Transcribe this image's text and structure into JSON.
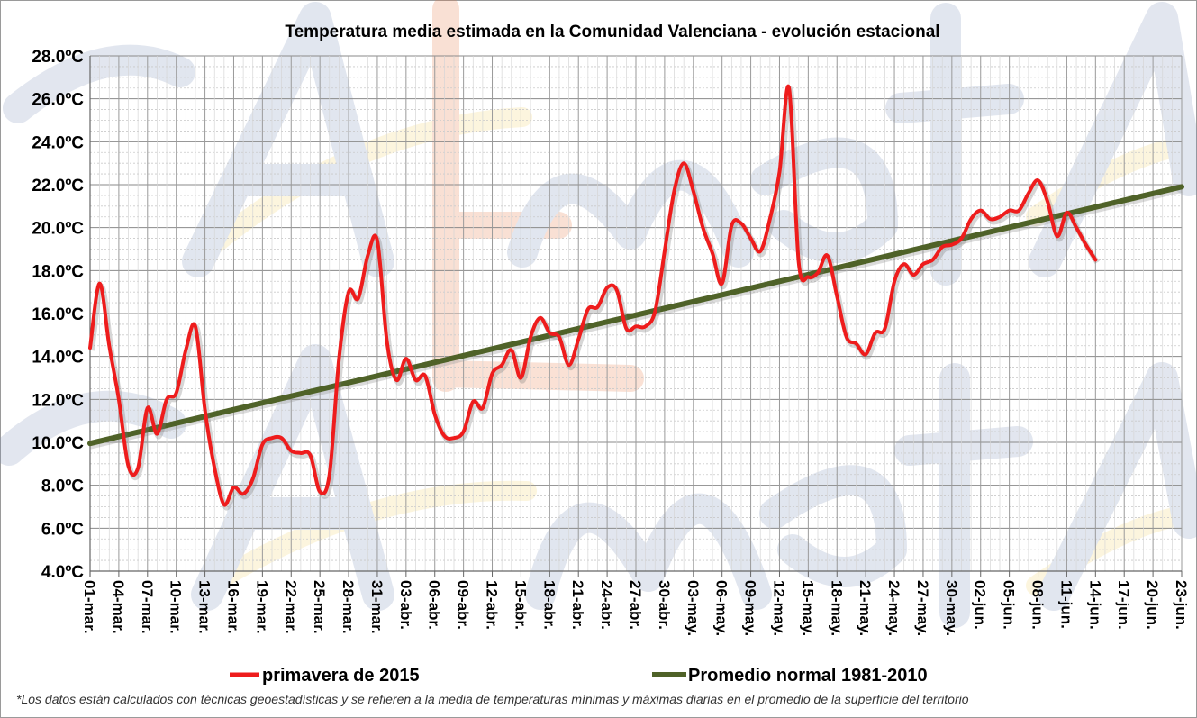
{
  "chart_data": {
    "type": "line",
    "title": "Temperatura media estimada en la Comunidad Valenciana - evolución estacional",
    "xlabel": "",
    "ylabel": "",
    "ylim": [
      4,
      28
    ],
    "y_ticks": [
      "4.0ºC",
      "6.0ºC",
      "8.0ºC",
      "10.0ºC",
      "12.0ºC",
      "14.0ºC",
      "16.0ºC",
      "18.0ºC",
      "20.0ºC",
      "22.0ºC",
      "24.0ºC",
      "26.0ºC",
      "28.0ºC"
    ],
    "x_ticks": [
      "01-mar.",
      "04-mar.",
      "07-mar.",
      "10-mar.",
      "13-mar.",
      "16-mar.",
      "19-mar.",
      "22-mar.",
      "25-mar.",
      "28-mar.",
      "31-mar.",
      "03-abr.",
      "06-abr.",
      "09-abr.",
      "12-abr.",
      "15-abr.",
      "18-abr.",
      "21-abr.",
      "24-abr.",
      "27-abr.",
      "30-abr.",
      "03-may.",
      "06-may.",
      "09-may.",
      "12-may.",
      "15-may.",
      "18-may.",
      "21-may.",
      "24-may.",
      "27-may.",
      "30-may.",
      "02-jun.",
      "05-jun.",
      "08-jun.",
      "11-jun.",
      "14-jun.",
      "17-jun.",
      "20-jun.",
      "23-jun."
    ],
    "day_count": 115,
    "grid": true,
    "legend_position": "bottom",
    "series": [
      {
        "name": "primavera de 2015",
        "color": "#ee1c1c",
        "values": [
          14.4,
          17.4,
          14.5,
          12.0,
          8.9,
          8.8,
          11.6,
          10.4,
          12.0,
          12.3,
          14.3,
          15.4,
          11.5,
          8.8,
          7.1,
          7.9,
          7.6,
          8.3,
          9.9,
          10.2,
          10.2,
          9.6,
          9.5,
          9.4,
          7.7,
          8.5,
          13.9,
          17.0,
          16.7,
          18.7,
          19.4,
          14.7,
          12.9,
          13.9,
          12.9,
          13.1,
          11.3,
          10.3,
          10.2,
          10.5,
          11.9,
          11.6,
          13.2,
          13.6,
          14.3,
          13.0,
          14.9,
          15.8,
          15.1,
          14.9,
          13.6,
          14.8,
          16.2,
          16.3,
          17.2,
          17.1,
          15.3,
          15.4,
          15.4,
          16.1,
          18.9,
          21.7,
          23.0,
          21.7,
          20.0,
          18.8,
          17.4,
          20.1,
          20.2,
          19.5,
          18.9,
          20.4,
          22.6,
          26.5,
          18.4,
          17.7,
          17.9,
          18.7,
          16.8,
          14.9,
          14.6,
          14.1,
          15.1,
          15.3,
          17.5,
          18.3,
          17.8,
          18.3,
          18.5,
          19.1,
          19.2,
          19.5,
          20.4,
          20.8,
          20.4,
          20.5,
          20.8,
          20.8,
          21.6,
          22.2,
          21.2,
          19.6,
          20.7,
          20.0,
          19.2,
          18.5
        ]
      },
      {
        "name": "Promedio normal 1981-2010",
        "color": "#4f6228",
        "start": 9.95,
        "end": 21.9
      }
    ]
  },
  "footnote": "*Los datos están calculados con técnicas geoestadísticas y se refieren a la media de temperaturas mínimas y máximas diarias en el promedio de la superficie del territorio"
}
